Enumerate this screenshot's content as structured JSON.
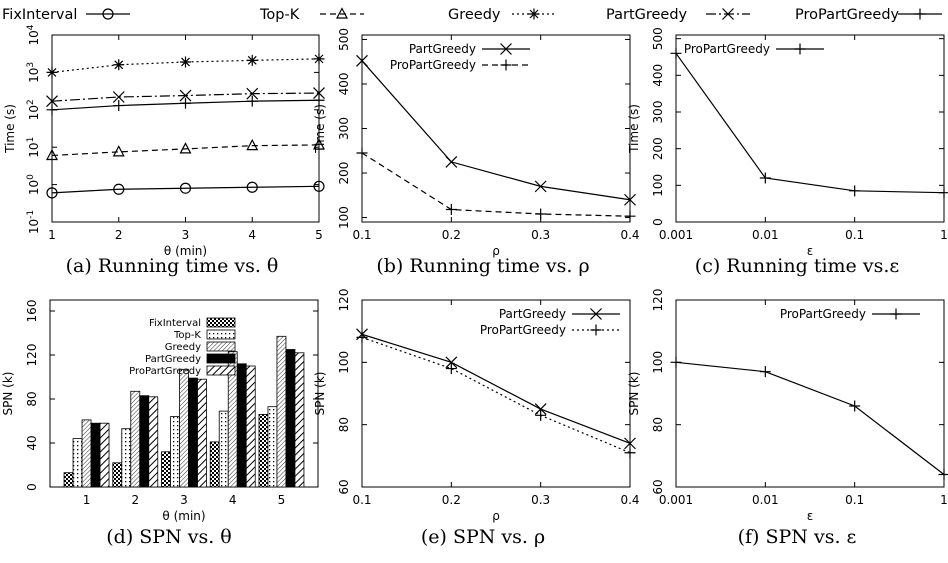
{
  "legend": {
    "entries": [
      {
        "name": "FixInterval",
        "marker": "circle",
        "dash": ""
      },
      {
        "name": "Top-K",
        "marker": "triangle",
        "dash": "6,4"
      },
      {
        "name": "Greedy",
        "marker": "star",
        "dash": "2,3"
      },
      {
        "name": "PartGreedy",
        "marker": "x",
        "dash": "10,3,2,3"
      },
      {
        "name": "ProPartGreedy",
        "marker": "plus",
        "dash": ""
      }
    ]
  },
  "chart_data": [
    {
      "id": "a",
      "type": "line",
      "caption": "(a) Running time vs. θ",
      "xlabel": "θ (min)",
      "ylabel": "Time (s)",
      "xscale": "linear",
      "yscale": "log",
      "xlim": [
        1,
        5
      ],
      "ylim": [
        0.1,
        10000
      ],
      "xticks": [
        "1",
        "2",
        "3",
        "4",
        "5"
      ],
      "yticks": [
        {
          "v": 0.1,
          "exp": "-1"
        },
        {
          "v": 1,
          "exp": "0"
        },
        {
          "v": 10,
          "exp": "1"
        },
        {
          "v": 100,
          "exp": "2"
        },
        {
          "v": 1000,
          "exp": "3"
        },
        {
          "v": 10000,
          "exp": "4"
        }
      ],
      "x": [
        1,
        2,
        3,
        4,
        5
      ],
      "series": [
        {
          "name": "FixInterval",
          "marker": "circle",
          "dash": "",
          "values": [
            0.6,
            0.75,
            0.8,
            0.85,
            0.9
          ]
        },
        {
          "name": "Top-K",
          "marker": "triangle",
          "dash": "6,4",
          "values": [
            6,
            7.5,
            9,
            11,
            11.5
          ]
        },
        {
          "name": "Greedy",
          "marker": "star",
          "dash": "2,3",
          "values": [
            1000,
            1600,
            1900,
            2100,
            2300
          ]
        },
        {
          "name": "PartGreedy",
          "marker": "x",
          "dash": "10,3,2,3",
          "values": [
            170,
            220,
            240,
            270,
            280
          ]
        },
        {
          "name": "ProPartGreedy",
          "marker": "plus",
          "dash": "",
          "values": [
            100,
            130,
            150,
            170,
            180
          ]
        }
      ]
    },
    {
      "id": "b",
      "type": "line",
      "caption": "(b) Running time vs. ρ",
      "xlabel": "ρ",
      "ylabel": "Time (s)",
      "xscale": "linear",
      "yscale": "linear",
      "xlim": [
        0.1,
        0.4
      ],
      "ylim": [
        90,
        510
      ],
      "xticks": [
        "0.1",
        "0.2",
        "0.3",
        "0.4"
      ],
      "yticks": [
        100,
        200,
        300,
        400,
        500
      ],
      "x": [
        0.1,
        0.2,
        0.3,
        0.4
      ],
      "legend_entries": [
        "PartGreedy",
        "ProPartGreedy"
      ],
      "series": [
        {
          "name": "PartGreedy",
          "marker": "x",
          "dash": "",
          "values": [
            452,
            225,
            170,
            140
          ]
        },
        {
          "name": "ProPartGreedy",
          "marker": "plus",
          "dash": "6,4",
          "values": [
            245,
            118,
            108,
            103
          ]
        }
      ]
    },
    {
      "id": "c",
      "type": "line",
      "caption": "(c) Running time vs.ε",
      "xlabel": "ε",
      "ylabel": "Time (s)",
      "xscale": "log",
      "yscale": "linear",
      "xlim": [
        0.001,
        1
      ],
      "ylim": [
        0,
        510
      ],
      "xticks": [
        "0.001",
        "0.01",
        "0.1",
        "1"
      ],
      "yticks": [
        0,
        100,
        200,
        300,
        400,
        500
      ],
      "x": [
        0.001,
        0.01,
        0.1,
        1
      ],
      "legend_entries": [
        "ProPartGreedy"
      ],
      "series": [
        {
          "name": "ProPartGreedy",
          "marker": "plus",
          "dash": "",
          "values": [
            460,
            120,
            85,
            80
          ]
        }
      ]
    },
    {
      "id": "d",
      "type": "bar",
      "caption": "(d) SPN vs. θ",
      "xlabel": "θ (min)",
      "ylabel": "SPN (k)",
      "xscale": "category",
      "yscale": "linear",
      "ylim": [
        0,
        170
      ],
      "categories": [
        "1",
        "2",
        "3",
        "4",
        "5"
      ],
      "yticks": [
        0,
        40,
        80,
        120,
        160
      ],
      "legend_entries": [
        "FixInterval",
        "Top-K",
        "Greedy",
        "PartGreedy",
        "ProPartGreedy"
      ],
      "series": [
        {
          "name": "FixInterval",
          "pattern": "checker",
          "values": [
            13,
            22,
            32,
            41,
            66
          ]
        },
        {
          "name": "Top-K",
          "pattern": "dots",
          "values": [
            44,
            53,
            64,
            69,
            73
          ]
        },
        {
          "name": "Greedy",
          "pattern": "fine",
          "values": [
            61,
            87,
            107,
            123,
            137
          ]
        },
        {
          "name": "PartGreedy",
          "pattern": "solid",
          "values": [
            58,
            83,
            99,
            112,
            125
          ]
        },
        {
          "name": "ProPartGreedy",
          "pattern": "diag",
          "values": [
            58,
            82,
            98,
            110,
            122
          ]
        }
      ]
    },
    {
      "id": "e",
      "type": "line",
      "caption": "(e) SPN vs. ρ",
      "xlabel": "ρ",
      "ylabel": "SPN (k)",
      "xscale": "linear",
      "yscale": "linear",
      "xlim": [
        0.1,
        0.4
      ],
      "ylim": [
        60,
        120
      ],
      "xticks": [
        "0.1",
        "0.2",
        "0.3",
        "0.4"
      ],
      "yticks": [
        60,
        80,
        100,
        120
      ],
      "x": [
        0.1,
        0.2,
        0.3,
        0.4
      ],
      "legend_entries": [
        "PartGreedy",
        "ProPartGreedy"
      ],
      "series": [
        {
          "name": "PartGreedy",
          "marker": "x",
          "dash": "",
          "values": [
            109,
            100,
            85,
            74
          ]
        },
        {
          "name": "ProPartGreedy",
          "marker": "plus",
          "dash": "2,3",
          "values": [
            108,
            98,
            83,
            71
          ]
        }
      ]
    },
    {
      "id": "f",
      "type": "line",
      "caption": "(f) SPN vs. ε",
      "xlabel": "ε",
      "ylabel": "SPN (k)",
      "xscale": "log",
      "yscale": "linear",
      "xlim": [
        0.001,
        1
      ],
      "ylim": [
        60,
        120
      ],
      "xticks": [
        "0.001",
        "0.01",
        "0.1",
        "1"
      ],
      "yticks": [
        60,
        80,
        100,
        120
      ],
      "x": [
        0.001,
        0.01,
        0.1,
        1
      ],
      "legend_entries": [
        "ProPartGreedy"
      ],
      "series": [
        {
          "name": "ProPartGreedy",
          "marker": "plus",
          "dash": "",
          "values": [
            100,
            97,
            86,
            64
          ]
        }
      ]
    }
  ]
}
